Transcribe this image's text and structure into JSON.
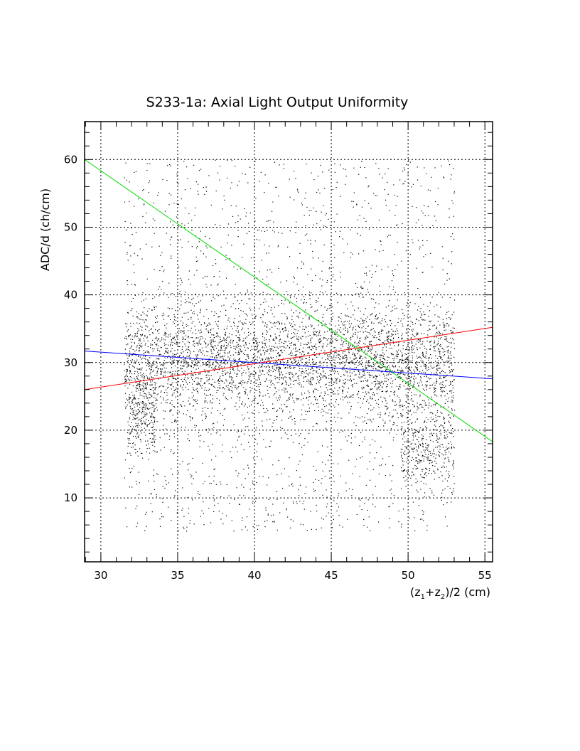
{
  "chart_data": {
    "type": "scatter",
    "title": "S233-1a: Axial Light Output Uniformity",
    "xlabel": "(z1+z2)/2 (cm)",
    "xlabel_parts": {
      "open": "(z",
      "sub1": "1",
      "plus": "+z",
      "sub2": "2",
      "close": ")/2 (cm)"
    },
    "ylabel": "ADC/d (ch/cm)",
    "xlim": [
      28.94,
      55.5
    ],
    "ylim": [
      0.55,
      65.6
    ],
    "grid": true,
    "x_ticks": [
      30,
      35,
      40,
      45,
      50,
      55
    ],
    "x_tick_labels": [
      "30",
      "35",
      "40",
      "45",
      "50",
      "55"
    ],
    "y_ticks": [
      10,
      20,
      30,
      40,
      50,
      60
    ],
    "y_tick_labels": [
      "10",
      "20",
      "30",
      "40",
      "50",
      "60"
    ],
    "scatter_distribution": {
      "note_points_generated": 6000,
      "x_range": [
        31.5,
        53
      ],
      "main_band": {
        "y_mean": 28,
        "y_sd": 4.2,
        "weight": 0.62
      },
      "low_cluster": {
        "x_range": [
          49.5,
          53
        ],
        "y_mean": 17,
        "y_sd": 3,
        "weight": 0.06
      },
      "left_cluster": {
        "x_range": [
          31.8,
          33.5
        ],
        "y_mean": 22,
        "y_sd": 3,
        "weight": 0.04
      },
      "background": {
        "y_range": [
          5,
          60
        ],
        "weight": 0.28
      }
    },
    "fit_lines": [
      {
        "name": "green",
        "color": "#00dd00",
        "x": [
          28.94,
          55.5
        ],
        "y": [
          60.0,
          18.3
        ]
      },
      {
        "name": "red",
        "color": "#ff0000",
        "x": [
          28.94,
          55.5
        ],
        "y": [
          26.0,
          35.2
        ]
      },
      {
        "name": "blue",
        "color": "#0000ff",
        "x": [
          28.94,
          55.5
        ],
        "y": [
          31.7,
          27.6
        ]
      }
    ],
    "point_color": "#000000"
  }
}
